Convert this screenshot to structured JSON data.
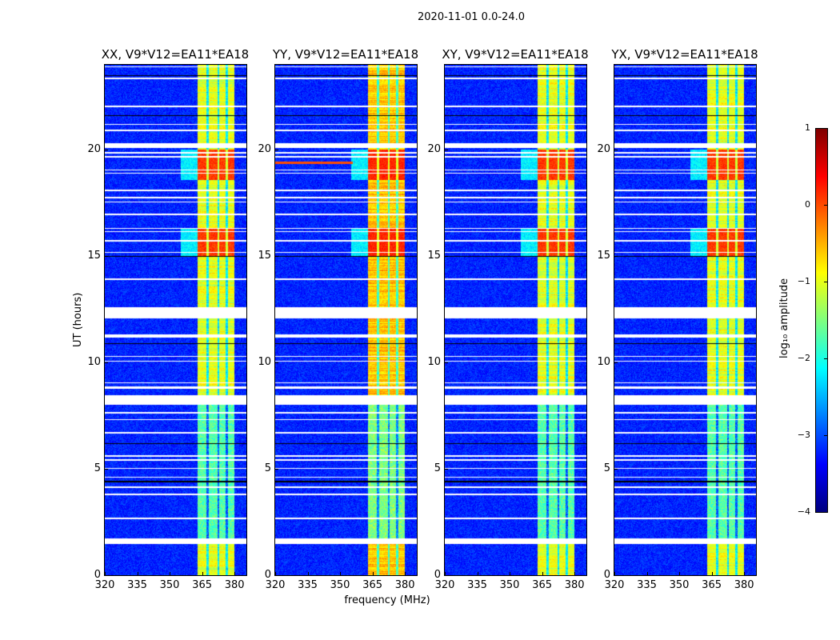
{
  "chart_data": {
    "type": "heatmap",
    "title": "2020-11-01 0.0-24.0",
    "xlabel": "frequency (MHz)",
    "ylabel": "UT (hours)",
    "xlim": [
      320,
      385.5
    ],
    "ylim": [
      0,
      24
    ],
    "xticks": [
      "320",
      "335",
      "350",
      "365",
      "380"
    ],
    "xtick_values": [
      320,
      335,
      350,
      365,
      380
    ],
    "yticks": [
      "0",
      "5",
      "10",
      "15",
      "20"
    ],
    "ytick_values": [
      0,
      5,
      10,
      15,
      20
    ],
    "colormap": "jet",
    "colorbar": {
      "label": "log₁₀ amplitude",
      "range": [
        -4,
        1
      ],
      "ticks": [
        "−4",
        "−3",
        "−2",
        "−1",
        "0",
        "1"
      ],
      "tick_values": [
        -4,
        -3,
        -2,
        -1,
        0,
        1
      ]
    },
    "background_level": -3.2,
    "rfi_band_mhz": [
      363,
      380
    ],
    "flagged_intervals_hours": [
      [
        1.46,
        1.73
      ],
      [
        8.03,
        8.45
      ],
      [
        12.1,
        12.6
      ],
      [
        20.1,
        20.3
      ]
    ],
    "panels": [
      {
        "title": "XX, V9*V12=EA11*EA18",
        "band_level": -1.0,
        "peak_level": 0.1,
        "night_level": -1.7
      },
      {
        "title": "YY, V9*V12=EA11*EA18",
        "band_level": -0.6,
        "peak_level": 0.2,
        "night_level": -1.5
      },
      {
        "title": "XY, V9*V12=EA11*EA18",
        "band_level": -1.0,
        "peak_level": 0.1,
        "night_level": -1.7
      },
      {
        "title": "YX, V9*V12=EA11*EA18",
        "band_level": -1.0,
        "peak_level": 0.1,
        "night_level": -1.7
      }
    ]
  }
}
